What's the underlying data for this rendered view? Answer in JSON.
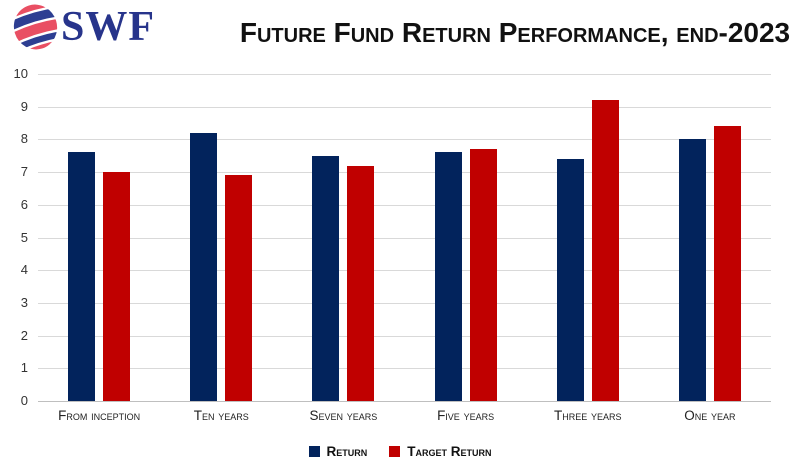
{
  "logo": {
    "text": "SWF",
    "icon": "globe-swirl-icon",
    "colors": {
      "text_blue": "#27348B",
      "band_red": "#E94F63",
      "band_navy": "#2D3E92"
    }
  },
  "title": "Future Fund Return Performance, end-2023",
  "chart_data": {
    "type": "bar",
    "title": "Future Fund Return Performance, end-2023",
    "categories": [
      "From inception",
      "Ten years",
      "Seven years",
      "Five years",
      "Three years",
      "One year"
    ],
    "series": [
      {
        "name": "Return",
        "color": "#02235C",
        "values": [
          7.6,
          8.2,
          7.5,
          7.6,
          7.4,
          8.0
        ]
      },
      {
        "name": "Target Return",
        "color": "#C00000",
        "values": [
          7.0,
          6.9,
          7.2,
          7.7,
          9.2,
          8.4
        ]
      }
    ],
    "xlabel": "",
    "ylabel": "",
    "ylim": [
      0,
      10
    ],
    "yticks": [
      0,
      1,
      2,
      3,
      4,
      5,
      6,
      7,
      8,
      9,
      10
    ],
    "grid": "horizontal",
    "legend_position": "bottom",
    "colors": {
      "gridline": "#D9D9D9",
      "axis_line": "#BFBFBF",
      "background": "#FFFFFF"
    }
  }
}
